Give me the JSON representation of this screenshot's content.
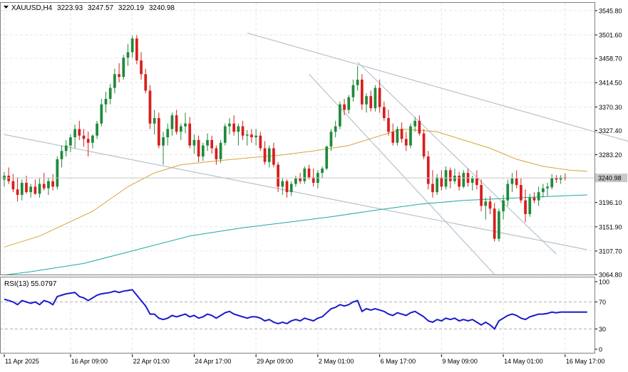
{
  "header": {
    "symbol": "XAUUSD,H4",
    "open": "3223.93",
    "high": "3247.57",
    "low": "3220.19",
    "close": "3240.98"
  },
  "rsi_header": {
    "label": "RSI(13) 55.0797"
  },
  "colors": {
    "bull": "#1f8a3a",
    "bear": "#d81e1e",
    "ma_fast": "#d9a338",
    "ma_slow": "#1fa8a0",
    "rsi": "#1a1acc",
    "channel": "#b7c2cd",
    "grid": "#e6e6e6",
    "frame": "#808080",
    "text": "#000000",
    "price_tag_bg": "#c9c9c9"
  },
  "chart_data": [
    {
      "type": "candlestick",
      "ylim": [
        3064.8,
        3560
      ],
      "y_ticks": [
        "3545.80",
        "3501.60",
        "3458.70",
        "3414.50",
        "3370.30",
        "3327.40",
        "3283.20",
        "3196.10",
        "3151.90",
        "3107.70",
        "3064.80"
      ],
      "current_price": "3240.98",
      "x_labels": [
        "11 Apr 2025",
        "16 Apr 09:00",
        "22 Apr 01:00",
        "24 Apr 17:00",
        "29 Apr 09:00",
        "2 May 01:00",
        "6 May 17:00",
        "9 May 09:00",
        "14 May 01:00",
        "16 May 17:00"
      ],
      "x_label_positions": [
        0,
        15,
        29,
        43,
        57,
        71,
        85,
        99,
        113,
        127
      ],
      "n_bars": 133,
      "ohlc": [
        [
          3238,
          3252,
          3225,
          3245
        ],
        [
          3245,
          3260,
          3230,
          3235
        ],
        [
          3235,
          3248,
          3215,
          3220
        ],
        [
          3220,
          3242,
          3198,
          3210
        ],
        [
          3210,
          3238,
          3200,
          3232
        ],
        [
          3232,
          3245,
          3212,
          3215
        ],
        [
          3215,
          3230,
          3205,
          3225
        ],
        [
          3225,
          3238,
          3210,
          3212
        ],
        [
          3212,
          3240,
          3205,
          3230
        ],
        [
          3230,
          3250,
          3218,
          3222
        ],
        [
          3222,
          3242,
          3210,
          3235
        ],
        [
          3235,
          3248,
          3218,
          3225
        ],
        [
          3225,
          3280,
          3220,
          3275
        ],
        [
          3275,
          3300,
          3260,
          3290
        ],
        [
          3290,
          3310,
          3280,
          3300
        ],
        [
          3300,
          3320,
          3288,
          3315
        ],
        [
          3315,
          3338,
          3295,
          3330
        ],
        [
          3330,
          3345,
          3310,
          3318
        ],
        [
          3318,
          3330,
          3298,
          3312
        ],
        [
          3312,
          3325,
          3280,
          3305
        ],
        [
          3305,
          3320,
          3295,
          3318
        ],
        [
          3318,
          3345,
          3312,
          3340
        ],
        [
          3340,
          3385,
          3335,
          3375
        ],
        [
          3375,
          3398,
          3360,
          3385
        ],
        [
          3385,
          3412,
          3375,
          3405
        ],
        [
          3405,
          3440,
          3395,
          3430
        ],
        [
          3430,
          3450,
          3415,
          3425
        ],
        [
          3425,
          3465,
          3420,
          3460
        ],
        [
          3460,
          3485,
          3445,
          3470
        ],
        [
          3470,
          3500,
          3460,
          3495
        ],
        [
          3495,
          3501,
          3448,
          3455
        ],
        [
          3455,
          3470,
          3420,
          3430
        ],
        [
          3430,
          3440,
          3395,
          3400
        ],
        [
          3400,
          3410,
          3330,
          3340
        ],
        [
          3340,
          3365,
          3320,
          3350
        ],
        [
          3350,
          3360,
          3295,
          3300
        ],
        [
          3300,
          3325,
          3265,
          3315
        ],
        [
          3315,
          3340,
          3300,
          3330
        ],
        [
          3330,
          3360,
          3318,
          3355
        ],
        [
          3355,
          3365,
          3320,
          3325
        ],
        [
          3325,
          3340,
          3310,
          3335
        ],
        [
          3335,
          3360,
          3322,
          3340
        ],
        [
          3340,
          3352,
          3295,
          3300
        ],
        [
          3300,
          3320,
          3285,
          3310
        ],
        [
          3310,
          3318,
          3270,
          3280
        ],
        [
          3280,
          3305,
          3272,
          3300
        ],
        [
          3300,
          3322,
          3290,
          3310
        ],
        [
          3310,
          3318,
          3285,
          3295
        ],
        [
          3295,
          3300,
          3265,
          3275
        ],
        [
          3275,
          3310,
          3268,
          3305
        ],
        [
          3305,
          3340,
          3300,
          3335
        ],
        [
          3335,
          3350,
          3320,
          3340
        ],
        [
          3340,
          3355,
          3318,
          3325
        ],
        [
          3325,
          3340,
          3300,
          3335
        ],
        [
          3335,
          3345,
          3310,
          3318
        ],
        [
          3318,
          3328,
          3300,
          3320
        ],
        [
          3320,
          3330,
          3305,
          3315
        ],
        [
          3315,
          3330,
          3300,
          3318
        ],
        [
          3318,
          3325,
          3290,
          3295
        ],
        [
          3295,
          3308,
          3265,
          3270
        ],
        [
          3270,
          3300,
          3260,
          3295
        ],
        [
          3295,
          3305,
          3260,
          3265
        ],
        [
          3265,
          3270,
          3215,
          3225
        ],
        [
          3225,
          3240,
          3210,
          3235
        ],
        [
          3235,
          3238,
          3205,
          3215
        ],
        [
          3215,
          3235,
          3208,
          3230
        ],
        [
          3230,
          3245,
          3225,
          3240
        ],
        [
          3240,
          3250,
          3230,
          3235
        ],
        [
          3235,
          3262,
          3230,
          3258
        ],
        [
          3258,
          3265,
          3238,
          3242
        ],
        [
          3242,
          3258,
          3225,
          3232
        ],
        [
          3232,
          3255,
          3222,
          3250
        ],
        [
          3250,
          3262,
          3240,
          3258
        ],
        [
          3258,
          3300,
          3255,
          3298
        ],
        [
          3298,
          3330,
          3290,
          3325
        ],
        [
          3325,
          3345,
          3315,
          3335
        ],
        [
          3335,
          3380,
          3330,
          3375
        ],
        [
          3375,
          3385,
          3355,
          3365
        ],
        [
          3365,
          3392,
          3358,
          3388
        ],
        [
          3388,
          3420,
          3380,
          3410
        ],
        [
          3410,
          3445,
          3400,
          3420
        ],
        [
          3420,
          3430,
          3365,
          3375
        ],
        [
          3375,
          3395,
          3360,
          3390
        ],
        [
          3390,
          3400,
          3362,
          3368
        ],
        [
          3368,
          3410,
          3362,
          3405
        ],
        [
          3405,
          3420,
          3360,
          3370
        ],
        [
          3370,
          3380,
          3345,
          3350
        ],
        [
          3350,
          3365,
          3318,
          3325
        ],
        [
          3325,
          3340,
          3300,
          3305
        ],
        [
          3305,
          3335,
          3300,
          3330
        ],
        [
          3330,
          3342,
          3305,
          3312
        ],
        [
          3312,
          3325,
          3290,
          3300
        ],
        [
          3300,
          3340,
          3295,
          3335
        ],
        [
          3335,
          3352,
          3325,
          3345
        ],
        [
          3345,
          3355,
          3318,
          3322
        ],
        [
          3322,
          3330,
          3275,
          3280
        ],
        [
          3280,
          3290,
          3220,
          3230
        ],
        [
          3230,
          3255,
          3205,
          3215
        ],
        [
          3215,
          3248,
          3210,
          3242
        ],
        [
          3242,
          3255,
          3218,
          3225
        ],
        [
          3225,
          3262,
          3220,
          3255
        ],
        [
          3255,
          3260,
          3222,
          3235
        ],
        [
          3235,
          3258,
          3230,
          3245
        ],
        [
          3245,
          3252,
          3218,
          3225
        ],
        [
          3225,
          3255,
          3222,
          3250
        ],
        [
          3250,
          3258,
          3225,
          3232
        ],
        [
          3232,
          3245,
          3218,
          3240
        ],
        [
          3240,
          3255,
          3220,
          3228
        ],
        [
          3228,
          3238,
          3180,
          3190
        ],
        [
          3190,
          3205,
          3165,
          3198
        ],
        [
          3198,
          3208,
          3175,
          3185
        ],
        [
          3185,
          3195,
          3125,
          3130
        ],
        [
          3130,
          3185,
          3125,
          3180
        ],
        [
          3180,
          3210,
          3165,
          3200
        ],
        [
          3200,
          3238,
          3190,
          3230
        ],
        [
          3230,
          3250,
          3215,
          3240
        ],
        [
          3240,
          3255,
          3222,
          3228
        ],
        [
          3228,
          3240,
          3195,
          3200
        ],
        [
          3200,
          3220,
          3160,
          3175
        ],
        [
          3175,
          3212,
          3170,
          3205
        ],
        [
          3205,
          3215,
          3195,
          3200
        ],
        [
          3200,
          3225,
          3190,
          3215
        ],
        [
          3215,
          3230,
          3205,
          3222
        ],
        [
          3222,
          3232,
          3208,
          3225
        ],
        [
          3224,
          3248,
          3220,
          3241
        ],
        [
          3241,
          3246,
          3232,
          3238
        ],
        [
          3238,
          3246,
          3230,
          3242
        ],
        [
          3242,
          3249,
          3236,
          3240
        ]
      ],
      "ma_fast": [
        [
          0,
          3115
        ],
        [
          8,
          3135
        ],
        [
          20,
          3180
        ],
        [
          28,
          3225
        ],
        [
          34,
          3250
        ],
        [
          40,
          3265
        ],
        [
          48,
          3272
        ],
        [
          56,
          3278
        ],
        [
          62,
          3282
        ],
        [
          70,
          3290
        ],
        [
          78,
          3300
        ],
        [
          86,
          3320
        ],
        [
          90,
          3330
        ],
        [
          98,
          3325
        ],
        [
          104,
          3310
        ],
        [
          110,
          3295
        ],
        [
          116,
          3275
        ],
        [
          122,
          3262
        ],
        [
          128,
          3255
        ],
        [
          132,
          3253
        ]
      ],
      "ma_slow": [
        [
          0,
          3064
        ],
        [
          6,
          3070
        ],
        [
          18,
          3085
        ],
        [
          30,
          3110
        ],
        [
          42,
          3135
        ],
        [
          54,
          3150
        ],
        [
          64,
          3160
        ],
        [
          74,
          3170
        ],
        [
          84,
          3182
        ],
        [
          94,
          3193
        ],
        [
          104,
          3200
        ],
        [
          112,
          3203
        ],
        [
          120,
          3206
        ],
        [
          126,
          3208
        ],
        [
          132,
          3210
        ]
      ],
      "channel_lines": [
        [
          [
            0,
            3320
          ],
          [
            132,
            3110
          ]
        ],
        [
          [
            55,
            3505
          ],
          [
            160,
            3265
          ]
        ],
        [
          [
            69,
            3430
          ],
          [
            111,
            3065
          ]
        ],
        [
          [
            80,
            3452
          ],
          [
            125,
            3102
          ]
        ]
      ]
    },
    {
      "type": "line",
      "name": "RSI(13)",
      "value": "55.0797",
      "ylim": [
        0,
        100
      ],
      "y_ticks": [
        "100",
        "70",
        "30",
        "0"
      ],
      "levels": [
        70,
        30
      ],
      "series": [
        {
          "name": "RSI(13)",
          "values": [
            74,
            72,
            70,
            66,
            72,
            70,
            68,
            70,
            66,
            72,
            70,
            66,
            78,
            80,
            82,
            83,
            84,
            78,
            76,
            72,
            76,
            80,
            82,
            83,
            84,
            86,
            84,
            86,
            87,
            88,
            80,
            72,
            64,
            52,
            52,
            46,
            44,
            46,
            50,
            48,
            50,
            52,
            48,
            50,
            46,
            48,
            52,
            50,
            46,
            50,
            54,
            56,
            52,
            50,
            48,
            46,
            48,
            48,
            46,
            42,
            44,
            40,
            38,
            40,
            38,
            42,
            44,
            42,
            46,
            44,
            42,
            46,
            48,
            54,
            60,
            62,
            66,
            64,
            66,
            70,
            72,
            56,
            60,
            58,
            60,
            58,
            56,
            52,
            50,
            54,
            52,
            50,
            54,
            56,
            52,
            48,
            42,
            40,
            44,
            42,
            46,
            44,
            46,
            42,
            44,
            42,
            44,
            40,
            36,
            40,
            36,
            30,
            42,
            46,
            50,
            52,
            50,
            46,
            44,
            48,
            50,
            52,
            52,
            53,
            55,
            54,
            55,
            55,
            55,
            55,
            55,
            55,
            55
          ]
        }
      ]
    }
  ]
}
